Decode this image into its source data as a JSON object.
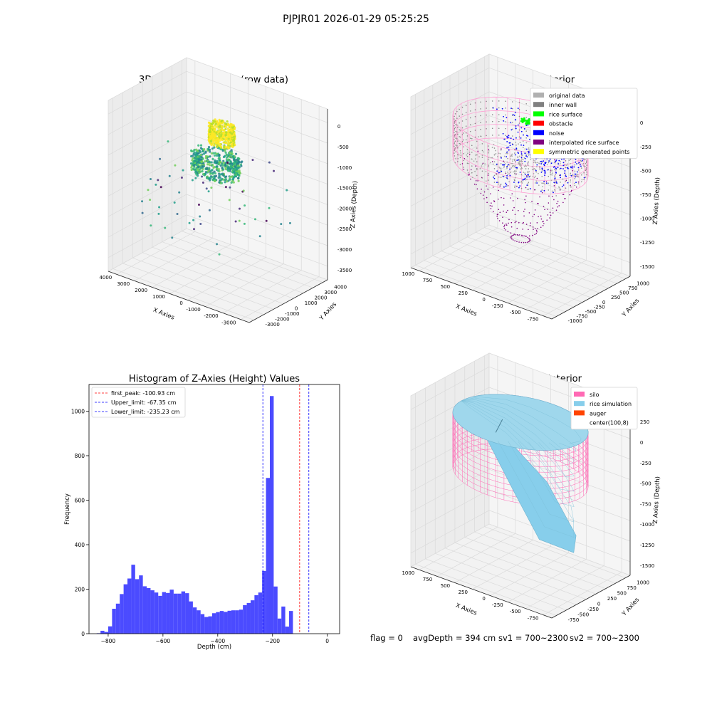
{
  "figure": {
    "suptitle": "PJPJR01 2026-01-29 05:25:25",
    "footer": {
      "flag": "flag = 0",
      "avg_depth": "avgDepth = 394 cm",
      "sv1": "sv1 = 700~2300",
      "sv2": "sv2 = 700~2300"
    }
  },
  "chart_data": [
    {
      "type": "scatter",
      "title": "3D Plot of Silo Interior(row data)",
      "xlabel": "X Axies",
      "ylabel": "Y Axies",
      "zlabel": "Z Axies (Depth)",
      "x_ticks": [
        "-3000",
        "-2000",
        "-1000",
        "0",
        "1000",
        "2000",
        "3000",
        "4000"
      ],
      "y_ticks": [
        "-3000",
        "-2000",
        "-1000",
        "0",
        "1000",
        "2000",
        "3000",
        "4000"
      ],
      "z_ticks": [
        "0",
        "-500",
        "-1000",
        "-1500",
        "-2000",
        "-2500",
        "-3000",
        "-3500"
      ],
      "xlim": [
        -3500,
        4500
      ],
      "ylim": [
        -3500,
        4500
      ],
      "zlim": [
        -4000,
        300
      ],
      "colormap": "viridis"
    },
    {
      "type": "scatter",
      "title": "3D classify of Silo Interior",
      "xlabel": "X Axies",
      "ylabel": "Y Axies",
      "zlabel": "Z Axies (Depth)",
      "x_ticks": [
        "-750",
        "-500",
        "-250",
        "0",
        "250",
        "500",
        "750",
        "1000"
      ],
      "y_ticks": [
        "-1000",
        "-750",
        "-500",
        "-250",
        "0",
        "250",
        "500",
        "750",
        "1000"
      ],
      "z_ticks": [
        "0",
        "-250",
        "-500",
        "-750",
        "-1000",
        "-1250",
        "-1500"
      ],
      "legend_position": "top-right",
      "legend": [
        {
          "label": "original data",
          "color": "#b0b0b0"
        },
        {
          "label": "inner wall",
          "color": "#808080"
        },
        {
          "label": "rice surface",
          "color": "#00ff00"
        },
        {
          "label": "obstacle",
          "color": "#ff0000"
        },
        {
          "label": "noise",
          "color": "#0000ff"
        },
        {
          "label": "interpolated rice surface",
          "color": "#800080"
        },
        {
          "label": "symmetric generated points",
          "color": "#ffff00"
        }
      ]
    },
    {
      "type": "bar",
      "title": "Histogram of Z-Axies (Height) Values",
      "xlabel": "Depth (cm)",
      "ylabel": "Frequency",
      "xlim": [
        -870,
        45
      ],
      "ylim": [
        0,
        1120
      ],
      "x_ticks": [
        -800,
        -600,
        -400,
        -200,
        0
      ],
      "y_ticks": [
        0,
        200,
        400,
        600,
        800,
        1000
      ],
      "bar_color": "#4b4bff",
      "bin_start": -842,
      "bin_width": 14.05,
      "values": [
        2,
        13,
        8,
        33,
        112,
        135,
        178,
        222,
        248,
        310,
        245,
        262,
        213,
        205,
        195,
        185,
        170,
        187,
        183,
        198,
        180,
        180,
        190,
        182,
        145,
        118,
        105,
        88,
        75,
        78,
        92,
        97,
        102,
        98,
        103,
        105,
        105,
        108,
        128,
        138,
        150,
        173,
        185,
        282,
        700,
        1068,
        212,
        68,
        122,
        32,
        102
      ],
      "legend_position": "top-left",
      "lines": [
        {
          "label": "first_peak: -100.93 cm",
          "x": -100.93,
          "color": "#ff0000"
        },
        {
          "label": "Upper_limit: -67.35 cm",
          "x": -67.35,
          "color": "#0000ff"
        },
        {
          "label": "Lower_limit: -235.23 cm",
          "x": -235.23,
          "color": "#0000ff"
        }
      ]
    },
    {
      "type": "area",
      "title": "3D simulation of Silo Interior",
      "xlabel": "X Axies",
      "ylabel": "Y Axies",
      "zlabel": "Z Axies (Depth)",
      "x_ticks": [
        "-750",
        "-500",
        "-250",
        "0",
        "250",
        "500",
        "750",
        "1000"
      ],
      "y_ticks": [
        "-750",
        "-500",
        "-250",
        "0",
        "250",
        "500",
        "750",
        "1000"
      ],
      "z_ticks": [
        "250",
        "0",
        "-250",
        "-500",
        "-750",
        "-1000",
        "-1250",
        "-1500"
      ],
      "legend_position": "top-right",
      "legend": [
        {
          "label": "silo",
          "color": "#ff69b4"
        },
        {
          "label": "rice simulation",
          "color": "#87ceeb"
        },
        {
          "label": "auger",
          "color": "#ff4500"
        },
        {
          "label": "center(100,8)",
          "color": "none"
        }
      ]
    }
  ]
}
